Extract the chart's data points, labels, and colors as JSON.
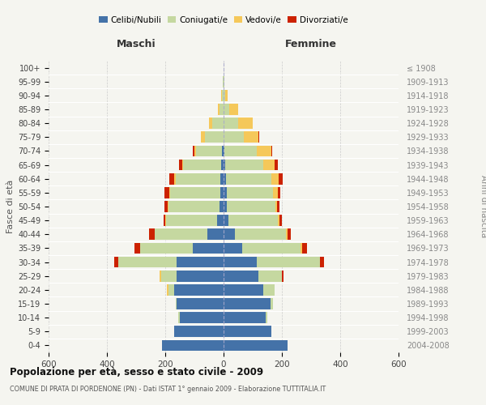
{
  "age_groups": [
    "0-4",
    "5-9",
    "10-14",
    "15-19",
    "20-24",
    "25-29",
    "30-34",
    "35-39",
    "40-44",
    "45-49",
    "50-54",
    "55-59",
    "60-64",
    "65-69",
    "70-74",
    "75-79",
    "80-84",
    "85-89",
    "90-94",
    "95-99",
    "100+"
  ],
  "birth_years": [
    "2004-2008",
    "1999-2003",
    "1994-1998",
    "1989-1993",
    "1984-1988",
    "1979-1983",
    "1974-1978",
    "1969-1973",
    "1964-1968",
    "1959-1963",
    "1954-1958",
    "1949-1953",
    "1944-1948",
    "1939-1943",
    "1934-1938",
    "1929-1933",
    "1924-1928",
    "1919-1923",
    "1914-1918",
    "1909-1913",
    "≤ 1908"
  ],
  "males": {
    "celibi": [
      210,
      170,
      150,
      160,
      170,
      160,
      160,
      105,
      55,
      22,
      15,
      12,
      10,
      8,
      5,
      0,
      0,
      0,
      0,
      0,
      0
    ],
    "coniugati": [
      0,
      0,
      5,
      5,
      20,
      55,
      200,
      180,
      180,
      175,
      175,
      170,
      155,
      130,
      90,
      65,
      40,
      15,
      5,
      2,
      0
    ],
    "vedovi": [
      0,
      0,
      0,
      0,
      5,
      5,
      0,
      0,
      0,
      3,
      3,
      5,
      5,
      5,
      5,
      12,
      10,
      5,
      2,
      0,
      0
    ],
    "divorziati": [
      0,
      0,
      0,
      0,
      0,
      0,
      15,
      20,
      20,
      5,
      10,
      15,
      15,
      10,
      5,
      0,
      0,
      0,
      0,
      0,
      0
    ]
  },
  "females": {
    "nubili": [
      220,
      165,
      145,
      160,
      135,
      120,
      115,
      65,
      40,
      18,
      12,
      10,
      8,
      5,
      3,
      0,
      0,
      0,
      0,
      0,
      0
    ],
    "coniugate": [
      0,
      0,
      5,
      10,
      40,
      80,
      215,
      200,
      175,
      168,
      165,
      160,
      155,
      130,
      110,
      70,
      50,
      20,
      5,
      2,
      0
    ],
    "vedove": [
      0,
      0,
      0,
      0,
      0,
      0,
      0,
      5,
      5,
      5,
      5,
      15,
      25,
      40,
      50,
      50,
      50,
      30,
      8,
      2,
      0
    ],
    "divorziate": [
      0,
      0,
      0,
      0,
      0,
      5,
      15,
      15,
      10,
      10,
      10,
      10,
      15,
      10,
      5,
      3,
      0,
      0,
      0,
      0,
      0
    ]
  },
  "colors": {
    "celibi": "#4472a8",
    "coniugati": "#c5d8a0",
    "vedovi": "#f5c85a",
    "divorziati": "#cc2200"
  },
  "title": "Popolazione per età, sesso e stato civile - 2009",
  "subtitle": "COMUNE DI PRATA DI PORDENONE (PN) - Dati ISTAT 1° gennaio 2009 - Elaborazione TUTTITALIA.IT",
  "xlabel_left": "Maschi",
  "xlabel_right": "Femmine",
  "ylabel_left": "Fasce di età",
  "ylabel_right": "Anni di nascita",
  "xlim": 600,
  "background_color": "#f5f5f0",
  "legend_labels": [
    "Celibi/Nubili",
    "Coniugati/e",
    "Vedovi/e",
    "Divorziati/e"
  ]
}
